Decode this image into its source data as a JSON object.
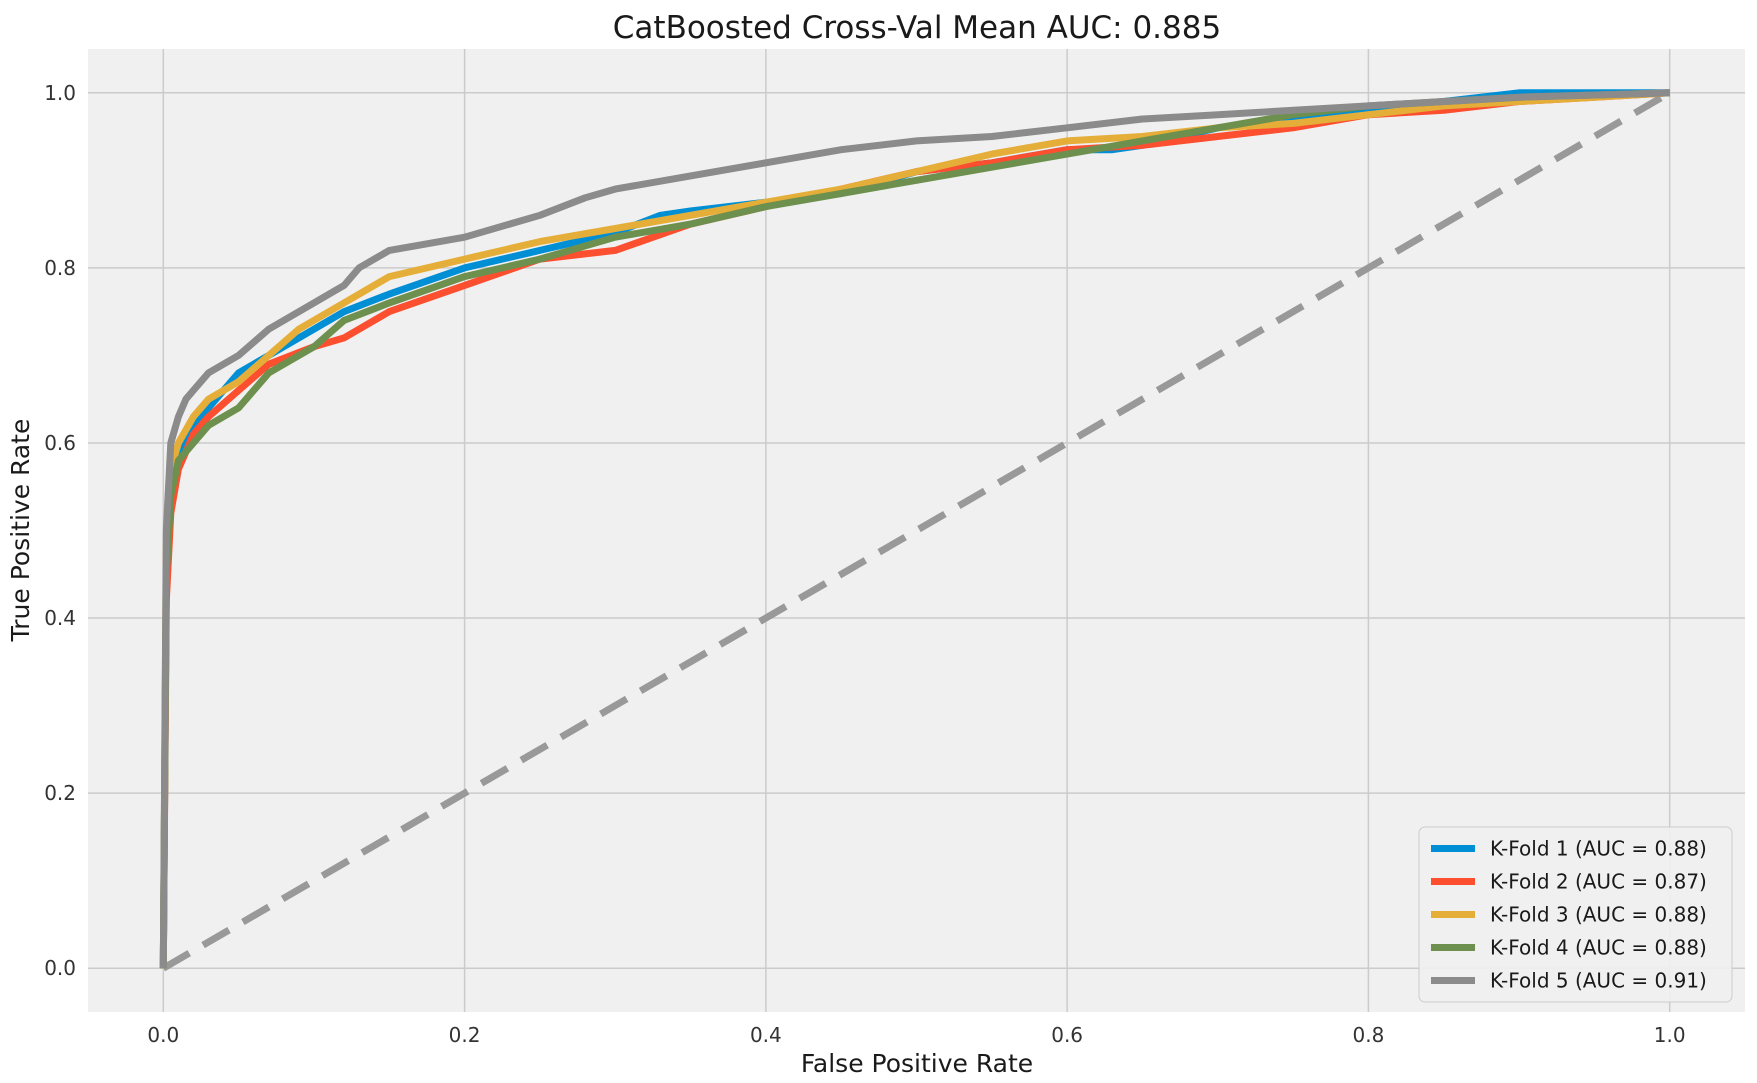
{
  "chart_data": {
    "type": "line",
    "title": "CatBoosted Cross-Val Mean AUC: 0.885",
    "xlabel": "False Positive Rate",
    "ylabel": "True Positive Rate",
    "xlim": [
      -0.05,
      1.05
    ],
    "ylim": [
      -0.05,
      1.05
    ],
    "xticks": [
      0.0,
      0.2,
      0.4,
      0.6,
      0.8,
      1.0
    ],
    "xtick_labels": [
      "0.0",
      "0.2",
      "0.4",
      "0.6",
      "0.8",
      "1.0"
    ],
    "yticks": [
      0.0,
      0.2,
      0.4,
      0.6,
      0.8,
      1.0
    ],
    "ytick_labels": [
      "0.0",
      "0.2",
      "0.4",
      "0.6",
      "0.8",
      "1.0"
    ],
    "grid": true,
    "legend_position": "bottom-right",
    "background_color": "#f0f0f0",
    "grid_color": "#cbcbcb",
    "diagonal": {
      "x": [
        0.0,
        1.0
      ],
      "y": [
        0.0,
        1.0
      ],
      "style": "dashed",
      "color": "#999999"
    },
    "series": [
      {
        "name": "K-Fold 1 (AUC = 0.88)",
        "color": "#008fd5",
        "x": [
          0.0,
          0.002,
          0.005,
          0.01,
          0.02,
          0.03,
          0.05,
          0.07,
          0.1,
          0.12,
          0.15,
          0.2,
          0.25,
          0.3,
          0.33,
          0.35,
          0.4,
          0.45,
          0.5,
          0.55,
          0.6,
          0.63,
          0.65,
          0.7,
          0.75,
          0.8,
          0.85,
          0.9,
          1.0
        ],
        "y": [
          0.0,
          0.45,
          0.55,
          0.59,
          0.62,
          0.64,
          0.68,
          0.7,
          0.73,
          0.75,
          0.77,
          0.8,
          0.82,
          0.84,
          0.86,
          0.865,
          0.875,
          0.885,
          0.91,
          0.92,
          0.935,
          0.935,
          0.94,
          0.96,
          0.97,
          0.98,
          0.99,
          1.0,
          1.0
        ]
      },
      {
        "name": "K-Fold 2 (AUC = 0.87)",
        "color": "#fc4f30",
        "x": [
          0.0,
          0.002,
          0.005,
          0.01,
          0.02,
          0.03,
          0.05,
          0.07,
          0.1,
          0.12,
          0.15,
          0.2,
          0.25,
          0.3,
          0.35,
          0.4,
          0.45,
          0.5,
          0.55,
          0.6,
          0.65,
          0.7,
          0.75,
          0.8,
          0.85,
          0.9,
          0.95,
          1.0
        ],
        "y": [
          0.0,
          0.42,
          0.52,
          0.57,
          0.61,
          0.63,
          0.66,
          0.69,
          0.71,
          0.72,
          0.75,
          0.78,
          0.81,
          0.82,
          0.85,
          0.87,
          0.89,
          0.91,
          0.92,
          0.935,
          0.94,
          0.95,
          0.96,
          0.975,
          0.98,
          0.99,
          0.995,
          1.0
        ]
      },
      {
        "name": "K-Fold 3 (AUC = 0.88)",
        "color": "#e5ae38",
        "x": [
          0.0,
          0.002,
          0.005,
          0.01,
          0.02,
          0.03,
          0.05,
          0.07,
          0.09,
          0.12,
          0.15,
          0.2,
          0.25,
          0.3,
          0.35,
          0.4,
          0.45,
          0.5,
          0.55,
          0.6,
          0.65,
          0.7,
          0.75,
          0.8,
          0.85,
          0.9,
          0.95,
          1.0
        ],
        "y": [
          0.0,
          0.48,
          0.57,
          0.6,
          0.63,
          0.65,
          0.67,
          0.7,
          0.73,
          0.76,
          0.79,
          0.81,
          0.83,
          0.845,
          0.86,
          0.875,
          0.89,
          0.91,
          0.93,
          0.945,
          0.95,
          0.96,
          0.965,
          0.975,
          0.985,
          0.99,
          0.995,
          1.0
        ]
      },
      {
        "name": "K-Fold 4 (AUC = 0.88)",
        "color": "#6d904f",
        "x": [
          0.0,
          0.002,
          0.005,
          0.01,
          0.02,
          0.03,
          0.05,
          0.07,
          0.1,
          0.12,
          0.15,
          0.2,
          0.25,
          0.3,
          0.35,
          0.4,
          0.45,
          0.5,
          0.55,
          0.6,
          0.65,
          0.7,
          0.75,
          0.8,
          0.85,
          0.9,
          1.0
        ],
        "y": [
          0.0,
          0.45,
          0.54,
          0.58,
          0.6,
          0.62,
          0.64,
          0.68,
          0.71,
          0.74,
          0.76,
          0.79,
          0.81,
          0.835,
          0.85,
          0.87,
          0.885,
          0.9,
          0.915,
          0.93,
          0.945,
          0.96,
          0.975,
          0.985,
          0.99,
          0.995,
          1.0
        ]
      },
      {
        "name": "K-Fold 5 (AUC = 0.91)",
        "color": "#8b8b8b",
        "x": [
          0.0,
          0.002,
          0.005,
          0.01,
          0.015,
          0.02,
          0.03,
          0.05,
          0.07,
          0.1,
          0.12,
          0.13,
          0.15,
          0.2,
          0.25,
          0.28,
          0.3,
          0.35,
          0.4,
          0.45,
          0.5,
          0.55,
          0.6,
          0.65,
          0.7,
          0.8,
          0.9,
          1.0
        ],
        "y": [
          0.0,
          0.5,
          0.6,
          0.63,
          0.65,
          0.66,
          0.68,
          0.7,
          0.73,
          0.76,
          0.78,
          0.8,
          0.82,
          0.835,
          0.86,
          0.88,
          0.89,
          0.905,
          0.92,
          0.935,
          0.945,
          0.95,
          0.96,
          0.97,
          0.975,
          0.985,
          0.995,
          1.0
        ]
      }
    ]
  }
}
